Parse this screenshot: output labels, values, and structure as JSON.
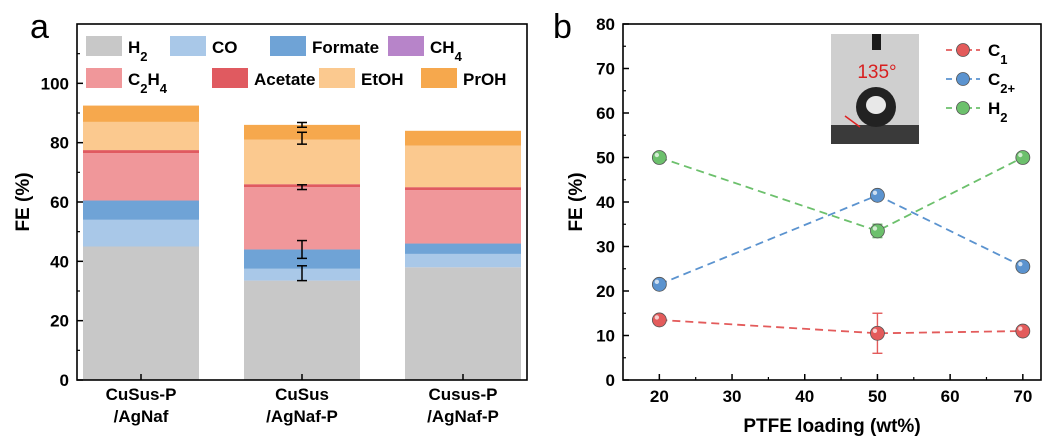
{
  "panels": {
    "a": {
      "label": "a"
    },
    "b": {
      "label": "b"
    }
  },
  "chart_data": [
    {
      "type": "bar",
      "stacked": true,
      "panel": "a",
      "ylabel": "FE (%)",
      "ylim": [
        0,
        120
      ],
      "yticks": [
        "0",
        "20",
        "40",
        "60",
        "80",
        "100"
      ],
      "categories": [
        [
          "CuSus-P",
          "/AgNaf"
        ],
        [
          "CuSus",
          "/AgNaf-P"
        ],
        [
          "Cusus-P",
          "/AgNaf-P"
        ]
      ],
      "legend": {
        "placement": "top",
        "entries": [
          {
            "key": "H2",
            "main": "H",
            "sub": "2",
            "tail": ""
          },
          {
            "key": "CO",
            "main": "CO",
            "sub": "",
            "tail": ""
          },
          {
            "key": "Formate",
            "main": "Formate",
            "sub": "",
            "tail": ""
          },
          {
            "key": "CH4",
            "main": "CH",
            "sub": "4",
            "tail": ""
          },
          {
            "key": "C2H4",
            "main": "C",
            "sub": "2",
            "tail": "H",
            "sub2": "4"
          },
          {
            "key": "Acetate",
            "main": "Acetate",
            "sub": "",
            "tail": ""
          },
          {
            "key": "EtOH",
            "main": "EtOH",
            "sub": "",
            "tail": ""
          },
          {
            "key": "PrOH",
            "main": "PrOH",
            "sub": "",
            "tail": ""
          }
        ]
      },
      "series": [
        {
          "name": "H2",
          "color": "#c8c8c8",
          "values": [
            45,
            33.5,
            38
          ]
        },
        {
          "name": "CO",
          "color": "#a9c8e8",
          "values": [
            9,
            4,
            4.5
          ]
        },
        {
          "name": "Formate",
          "color": "#6fa3d6",
          "values": [
            6.5,
            6.5,
            3.5
          ]
        },
        {
          "name": "CH4",
          "color": "#b784c9",
          "values": [
            0,
            0,
            0
          ]
        },
        {
          "name": "C2H4",
          "color": "#f0979a",
          "values": [
            16,
            21,
            18
          ]
        },
        {
          "name": "Acetate",
          "color": "#e05a60",
          "values": [
            1,
            1,
            1
          ]
        },
        {
          "name": "EtOH",
          "color": "#fbc98f",
          "values": [
            9.5,
            15,
            14
          ]
        },
        {
          "name": "PrOH",
          "color": "#f6a84d",
          "values": [
            5.5,
            5,
            5
          ]
        }
      ],
      "error_bars": [
        {
          "category": 1,
          "value": 36,
          "err": 2.5
        },
        {
          "category": 1,
          "value": 44,
          "err": 3
        },
        {
          "category": 1,
          "value": 65,
          "err": 0.8
        },
        {
          "category": 1,
          "value": 81.5,
          "err": 2
        },
        {
          "category": 1,
          "value": 86,
          "err": 0.8
        }
      ]
    },
    {
      "type": "line",
      "panel": "b",
      "xlabel": "PTFE loading (wt%)",
      "ylabel": "FE (%)",
      "xlim": [
        15,
        72.5
      ],
      "ylim": [
        0,
        80
      ],
      "xticks": [
        20,
        30,
        40,
        50,
        60,
        70
      ],
      "yticks": [
        0,
        10,
        20,
        30,
        40,
        50,
        60,
        70,
        80
      ],
      "legend": {
        "placement": "top-right"
      },
      "x": [
        20,
        50,
        70
      ],
      "series": [
        {
          "name": "C1",
          "main": "C",
          "sub": "1",
          "color": "#e35b5b",
          "values": [
            13.5,
            10.5,
            11
          ],
          "errors": [
            0.5,
            4.5,
            0.5
          ]
        },
        {
          "name": "C2+",
          "main": "C",
          "sub": "2+",
          "color": "#5b93cf",
          "values": [
            21.5,
            41.5,
            25.5
          ],
          "errors": [
            0.5,
            1,
            0.5
          ]
        },
        {
          "name": "H2",
          "main": "H",
          "sub": "2",
          "color": "#6cc06c",
          "values": [
            50,
            33.5,
            50
          ],
          "errors": [
            0.5,
            1.5,
            0.5
          ]
        }
      ],
      "inset": {
        "contact_angle": "135°"
      }
    }
  ]
}
